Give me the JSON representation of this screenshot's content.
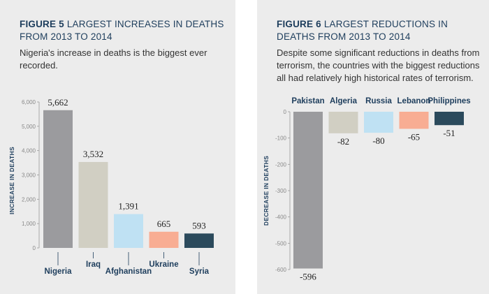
{
  "chart_data": [
    {
      "type": "bar",
      "figure_label": "FIGURE 5",
      "title": "LARGEST INCREASES IN DEATHS FROM 2013 TO 2014",
      "subtitle": "Nigeria's increase in deaths is the biggest ever recorded.",
      "ylabel": "INCREASE IN DEATHS",
      "ylim": [
        0,
        6000
      ],
      "yticks": [
        "0",
        "1,000",
        "2,000",
        "3,000",
        "4,000",
        "5,000",
        "6,000"
      ],
      "categories": [
        "Nigeria",
        "Iraq",
        "Afghanistan",
        "Ukraine",
        "Syria"
      ],
      "values": [
        5662,
        3532,
        1391,
        665,
        593
      ],
      "value_labels": [
        "5,662",
        "3,532",
        "1,391",
        "665",
        "593"
      ],
      "colors": [
        "#9b9b9e",
        "#d1cfc3",
        "#bfe1f3",
        "#f8ad93",
        "#2b4a5c"
      ]
    },
    {
      "type": "bar",
      "figure_label": "FIGURE 6",
      "title": "LARGEST REDUCTIONS IN DEATHS FROM 2013 TO 2014",
      "subtitle": "Despite some significant reductions in deaths from terrorism, the countries with the biggest reductions all had relatively high historical rates of terrorism.",
      "ylabel": "DECREASE IN DEATHS",
      "ylim": [
        -600,
        0
      ],
      "yticks": [
        "0",
        "-100",
        "-200",
        "-300",
        "-400",
        "-500",
        "-600"
      ],
      "categories": [
        "Pakistan",
        "Algeria",
        "Russia",
        "Lebanon",
        "Philippines"
      ],
      "values": [
        -596,
        -82,
        -80,
        -65,
        -51
      ],
      "value_labels": [
        "-596",
        "-82",
        "-80",
        "-65",
        "-51"
      ],
      "colors": [
        "#9b9b9e",
        "#d1cfc3",
        "#bfe1f3",
        "#f8ad93",
        "#2b4a5c"
      ]
    }
  ]
}
